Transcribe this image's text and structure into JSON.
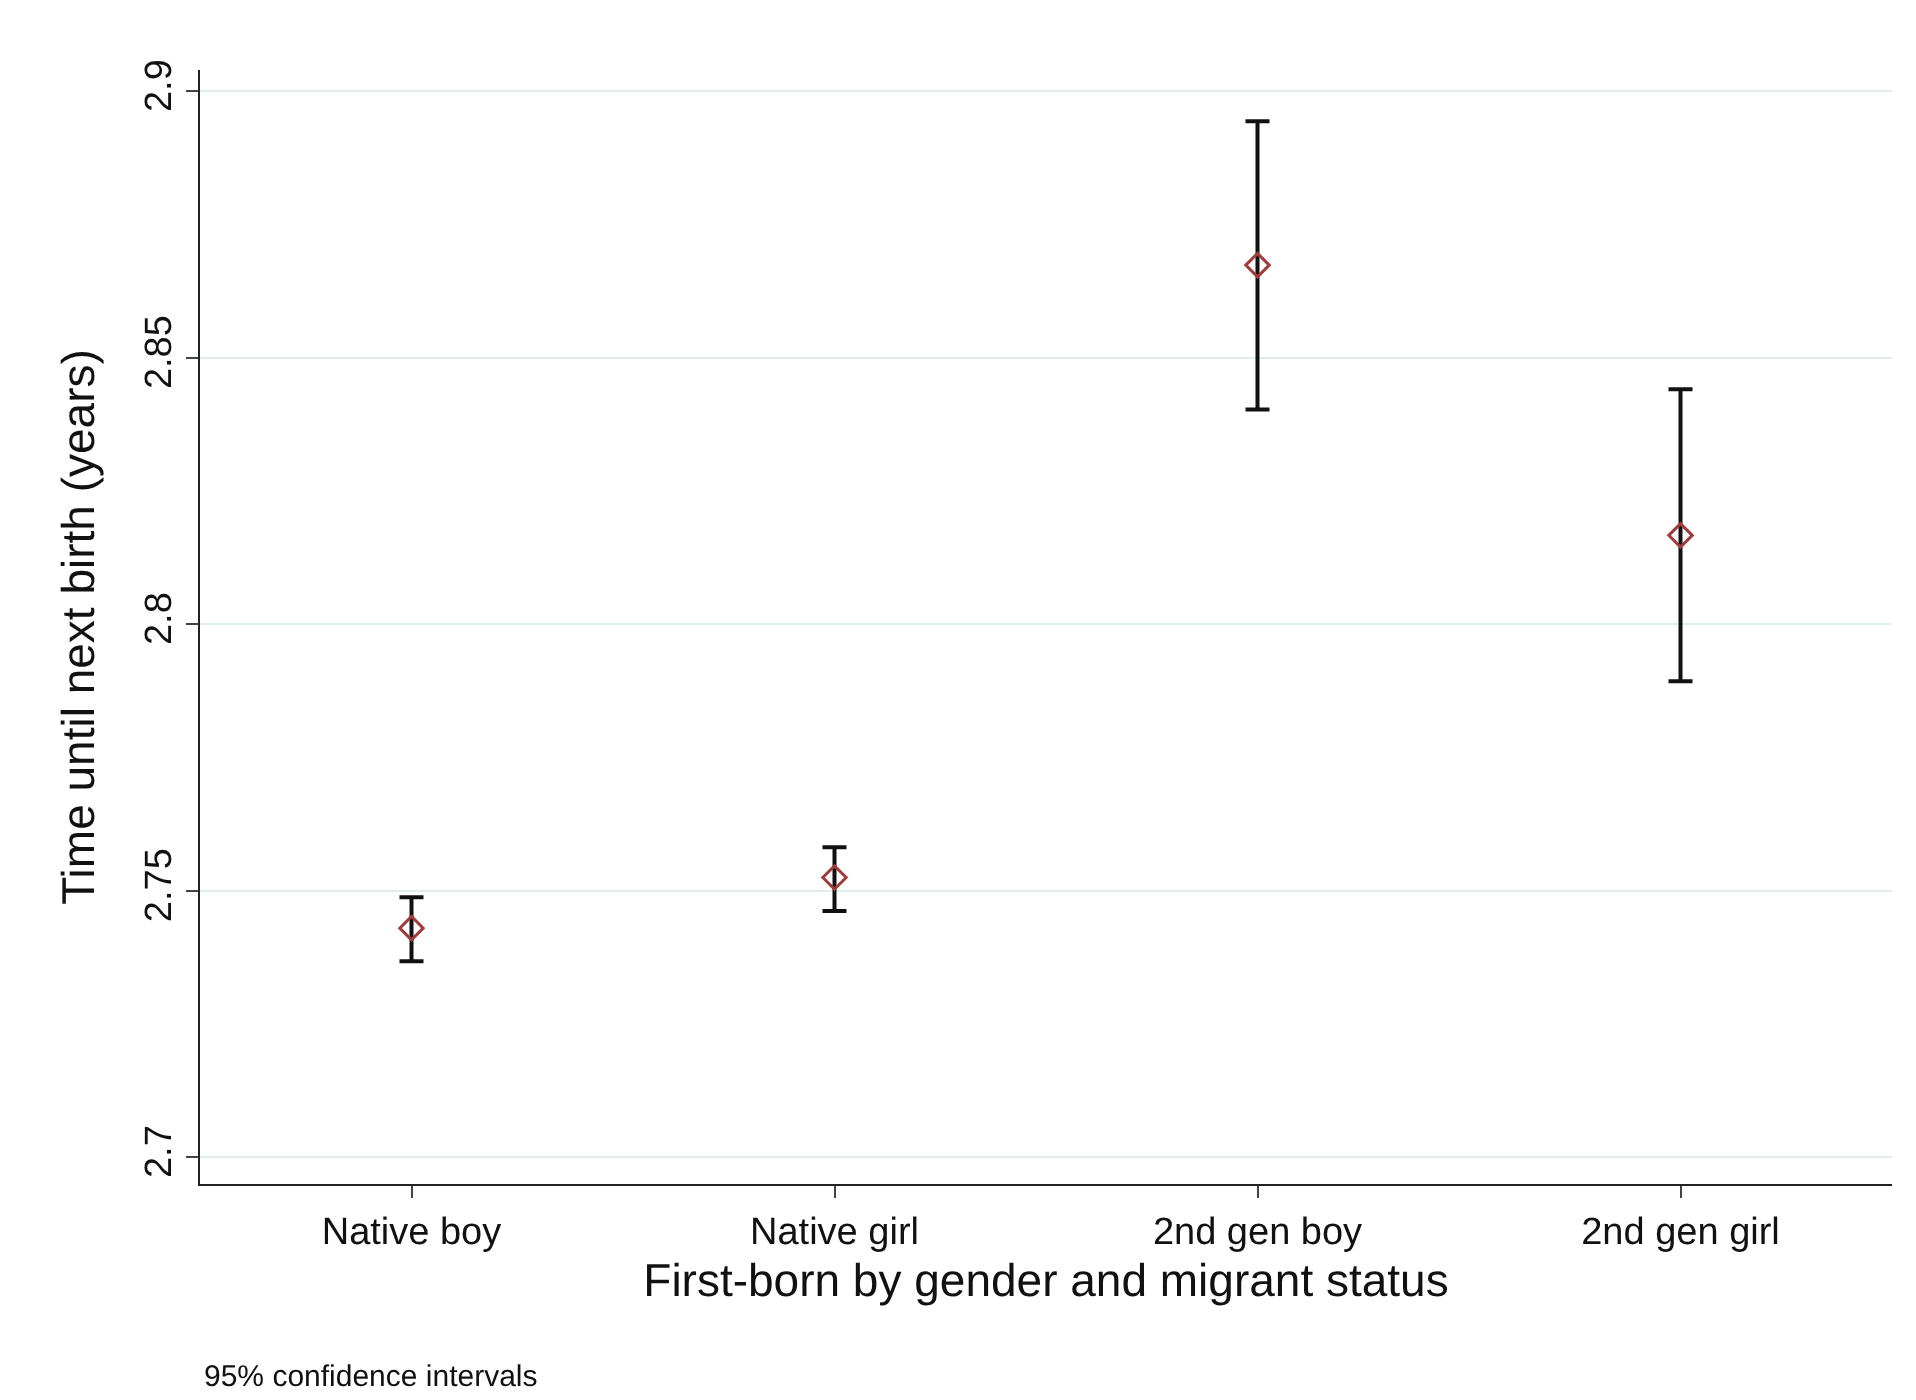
{
  "chart_data": {
    "type": "scatter",
    "xlabel": "First-born by gender and migrant status",
    "ylabel": "Time until next birth (years)",
    "categories": [
      "Native boy",
      "Native girl",
      "2nd gen boy",
      "2nd gen girl"
    ],
    "series": [
      {
        "color": "#a03c3c",
        "values": [
          2.743,
          2.7525,
          2.8674,
          2.8167
        ],
        "errors": [
          [
            2.7368,
            2.7488
          ],
          [
            2.7462,
            2.7582
          ],
          [
            2.8403,
            2.8944
          ],
          [
            2.7893,
            2.8441
          ]
        ]
      }
    ],
    "ylim": [
      2.695,
      2.904
    ],
    "yticks": [
      {
        "value": 2.7,
        "label": "2.7"
      },
      {
        "value": 2.75,
        "label": "2.75"
      },
      {
        "value": 2.8,
        "label": "2.8"
      },
      {
        "value": 2.85,
        "label": "2.85"
      },
      {
        "value": 2.9,
        "label": "2.9"
      }
    ],
    "grid": "y",
    "marker": "diamond",
    "annotations": [
      "95% confidence intervals"
    ]
  }
}
